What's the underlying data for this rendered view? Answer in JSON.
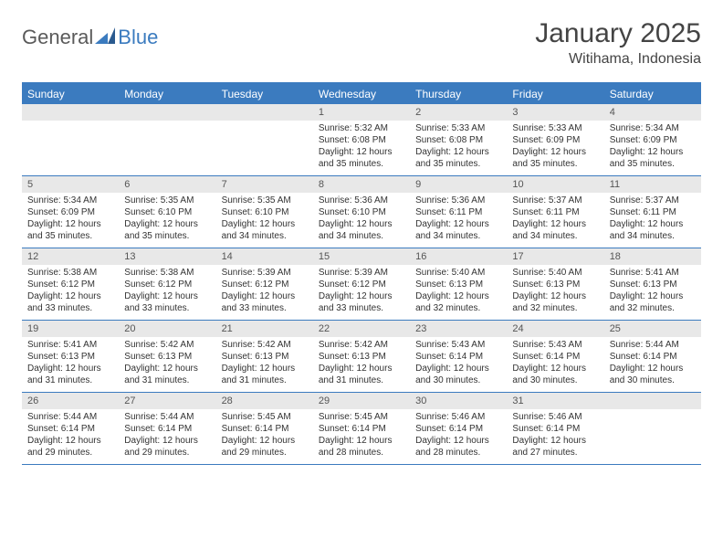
{
  "logo": {
    "text_a": "General",
    "text_b": "Blue",
    "mark_color": "#3b7bbf"
  },
  "title": "January 2025",
  "location": "Witihama, Indonesia",
  "colors": {
    "header_bg": "#3b7bbf",
    "header_text": "#ffffff",
    "date_row_bg": "#e8e8e8",
    "border": "#3b7bbf",
    "text": "#333333"
  },
  "typography": {
    "title_fontsize": 30,
    "location_fontsize": 16,
    "header_fontsize": 12,
    "cell_fontsize": 10
  },
  "day_names": [
    "Sunday",
    "Monday",
    "Tuesday",
    "Wednesday",
    "Thursday",
    "Friday",
    "Saturday"
  ],
  "weeks": [
    [
      null,
      null,
      null,
      {
        "d": "1",
        "sr": "Sunrise: 5:32 AM",
        "ss": "Sunset: 6:08 PM",
        "dl": "Daylight: 12 hours and 35 minutes."
      },
      {
        "d": "2",
        "sr": "Sunrise: 5:33 AM",
        "ss": "Sunset: 6:08 PM",
        "dl": "Daylight: 12 hours and 35 minutes."
      },
      {
        "d": "3",
        "sr": "Sunrise: 5:33 AM",
        "ss": "Sunset: 6:09 PM",
        "dl": "Daylight: 12 hours and 35 minutes."
      },
      {
        "d": "4",
        "sr": "Sunrise: 5:34 AM",
        "ss": "Sunset: 6:09 PM",
        "dl": "Daylight: 12 hours and 35 minutes."
      }
    ],
    [
      {
        "d": "5",
        "sr": "Sunrise: 5:34 AM",
        "ss": "Sunset: 6:09 PM",
        "dl": "Daylight: 12 hours and 35 minutes."
      },
      {
        "d": "6",
        "sr": "Sunrise: 5:35 AM",
        "ss": "Sunset: 6:10 PM",
        "dl": "Daylight: 12 hours and 35 minutes."
      },
      {
        "d": "7",
        "sr": "Sunrise: 5:35 AM",
        "ss": "Sunset: 6:10 PM",
        "dl": "Daylight: 12 hours and 34 minutes."
      },
      {
        "d": "8",
        "sr": "Sunrise: 5:36 AM",
        "ss": "Sunset: 6:10 PM",
        "dl": "Daylight: 12 hours and 34 minutes."
      },
      {
        "d": "9",
        "sr": "Sunrise: 5:36 AM",
        "ss": "Sunset: 6:11 PM",
        "dl": "Daylight: 12 hours and 34 minutes."
      },
      {
        "d": "10",
        "sr": "Sunrise: 5:37 AM",
        "ss": "Sunset: 6:11 PM",
        "dl": "Daylight: 12 hours and 34 minutes."
      },
      {
        "d": "11",
        "sr": "Sunrise: 5:37 AM",
        "ss": "Sunset: 6:11 PM",
        "dl": "Daylight: 12 hours and 34 minutes."
      }
    ],
    [
      {
        "d": "12",
        "sr": "Sunrise: 5:38 AM",
        "ss": "Sunset: 6:12 PM",
        "dl": "Daylight: 12 hours and 33 minutes."
      },
      {
        "d": "13",
        "sr": "Sunrise: 5:38 AM",
        "ss": "Sunset: 6:12 PM",
        "dl": "Daylight: 12 hours and 33 minutes."
      },
      {
        "d": "14",
        "sr": "Sunrise: 5:39 AM",
        "ss": "Sunset: 6:12 PM",
        "dl": "Daylight: 12 hours and 33 minutes."
      },
      {
        "d": "15",
        "sr": "Sunrise: 5:39 AM",
        "ss": "Sunset: 6:12 PM",
        "dl": "Daylight: 12 hours and 33 minutes."
      },
      {
        "d": "16",
        "sr": "Sunrise: 5:40 AM",
        "ss": "Sunset: 6:13 PM",
        "dl": "Daylight: 12 hours and 32 minutes."
      },
      {
        "d": "17",
        "sr": "Sunrise: 5:40 AM",
        "ss": "Sunset: 6:13 PM",
        "dl": "Daylight: 12 hours and 32 minutes."
      },
      {
        "d": "18",
        "sr": "Sunrise: 5:41 AM",
        "ss": "Sunset: 6:13 PM",
        "dl": "Daylight: 12 hours and 32 minutes."
      }
    ],
    [
      {
        "d": "19",
        "sr": "Sunrise: 5:41 AM",
        "ss": "Sunset: 6:13 PM",
        "dl": "Daylight: 12 hours and 31 minutes."
      },
      {
        "d": "20",
        "sr": "Sunrise: 5:42 AM",
        "ss": "Sunset: 6:13 PM",
        "dl": "Daylight: 12 hours and 31 minutes."
      },
      {
        "d": "21",
        "sr": "Sunrise: 5:42 AM",
        "ss": "Sunset: 6:13 PM",
        "dl": "Daylight: 12 hours and 31 minutes."
      },
      {
        "d": "22",
        "sr": "Sunrise: 5:42 AM",
        "ss": "Sunset: 6:13 PM",
        "dl": "Daylight: 12 hours and 31 minutes."
      },
      {
        "d": "23",
        "sr": "Sunrise: 5:43 AM",
        "ss": "Sunset: 6:14 PM",
        "dl": "Daylight: 12 hours and 30 minutes."
      },
      {
        "d": "24",
        "sr": "Sunrise: 5:43 AM",
        "ss": "Sunset: 6:14 PM",
        "dl": "Daylight: 12 hours and 30 minutes."
      },
      {
        "d": "25",
        "sr": "Sunrise: 5:44 AM",
        "ss": "Sunset: 6:14 PM",
        "dl": "Daylight: 12 hours and 30 minutes."
      }
    ],
    [
      {
        "d": "26",
        "sr": "Sunrise: 5:44 AM",
        "ss": "Sunset: 6:14 PM",
        "dl": "Daylight: 12 hours and 29 minutes."
      },
      {
        "d": "27",
        "sr": "Sunrise: 5:44 AM",
        "ss": "Sunset: 6:14 PM",
        "dl": "Daylight: 12 hours and 29 minutes."
      },
      {
        "d": "28",
        "sr": "Sunrise: 5:45 AM",
        "ss": "Sunset: 6:14 PM",
        "dl": "Daylight: 12 hours and 29 minutes."
      },
      {
        "d": "29",
        "sr": "Sunrise: 5:45 AM",
        "ss": "Sunset: 6:14 PM",
        "dl": "Daylight: 12 hours and 28 minutes."
      },
      {
        "d": "30",
        "sr": "Sunrise: 5:46 AM",
        "ss": "Sunset: 6:14 PM",
        "dl": "Daylight: 12 hours and 28 minutes."
      },
      {
        "d": "31",
        "sr": "Sunrise: 5:46 AM",
        "ss": "Sunset: 6:14 PM",
        "dl": "Daylight: 12 hours and 27 minutes."
      },
      null
    ]
  ]
}
